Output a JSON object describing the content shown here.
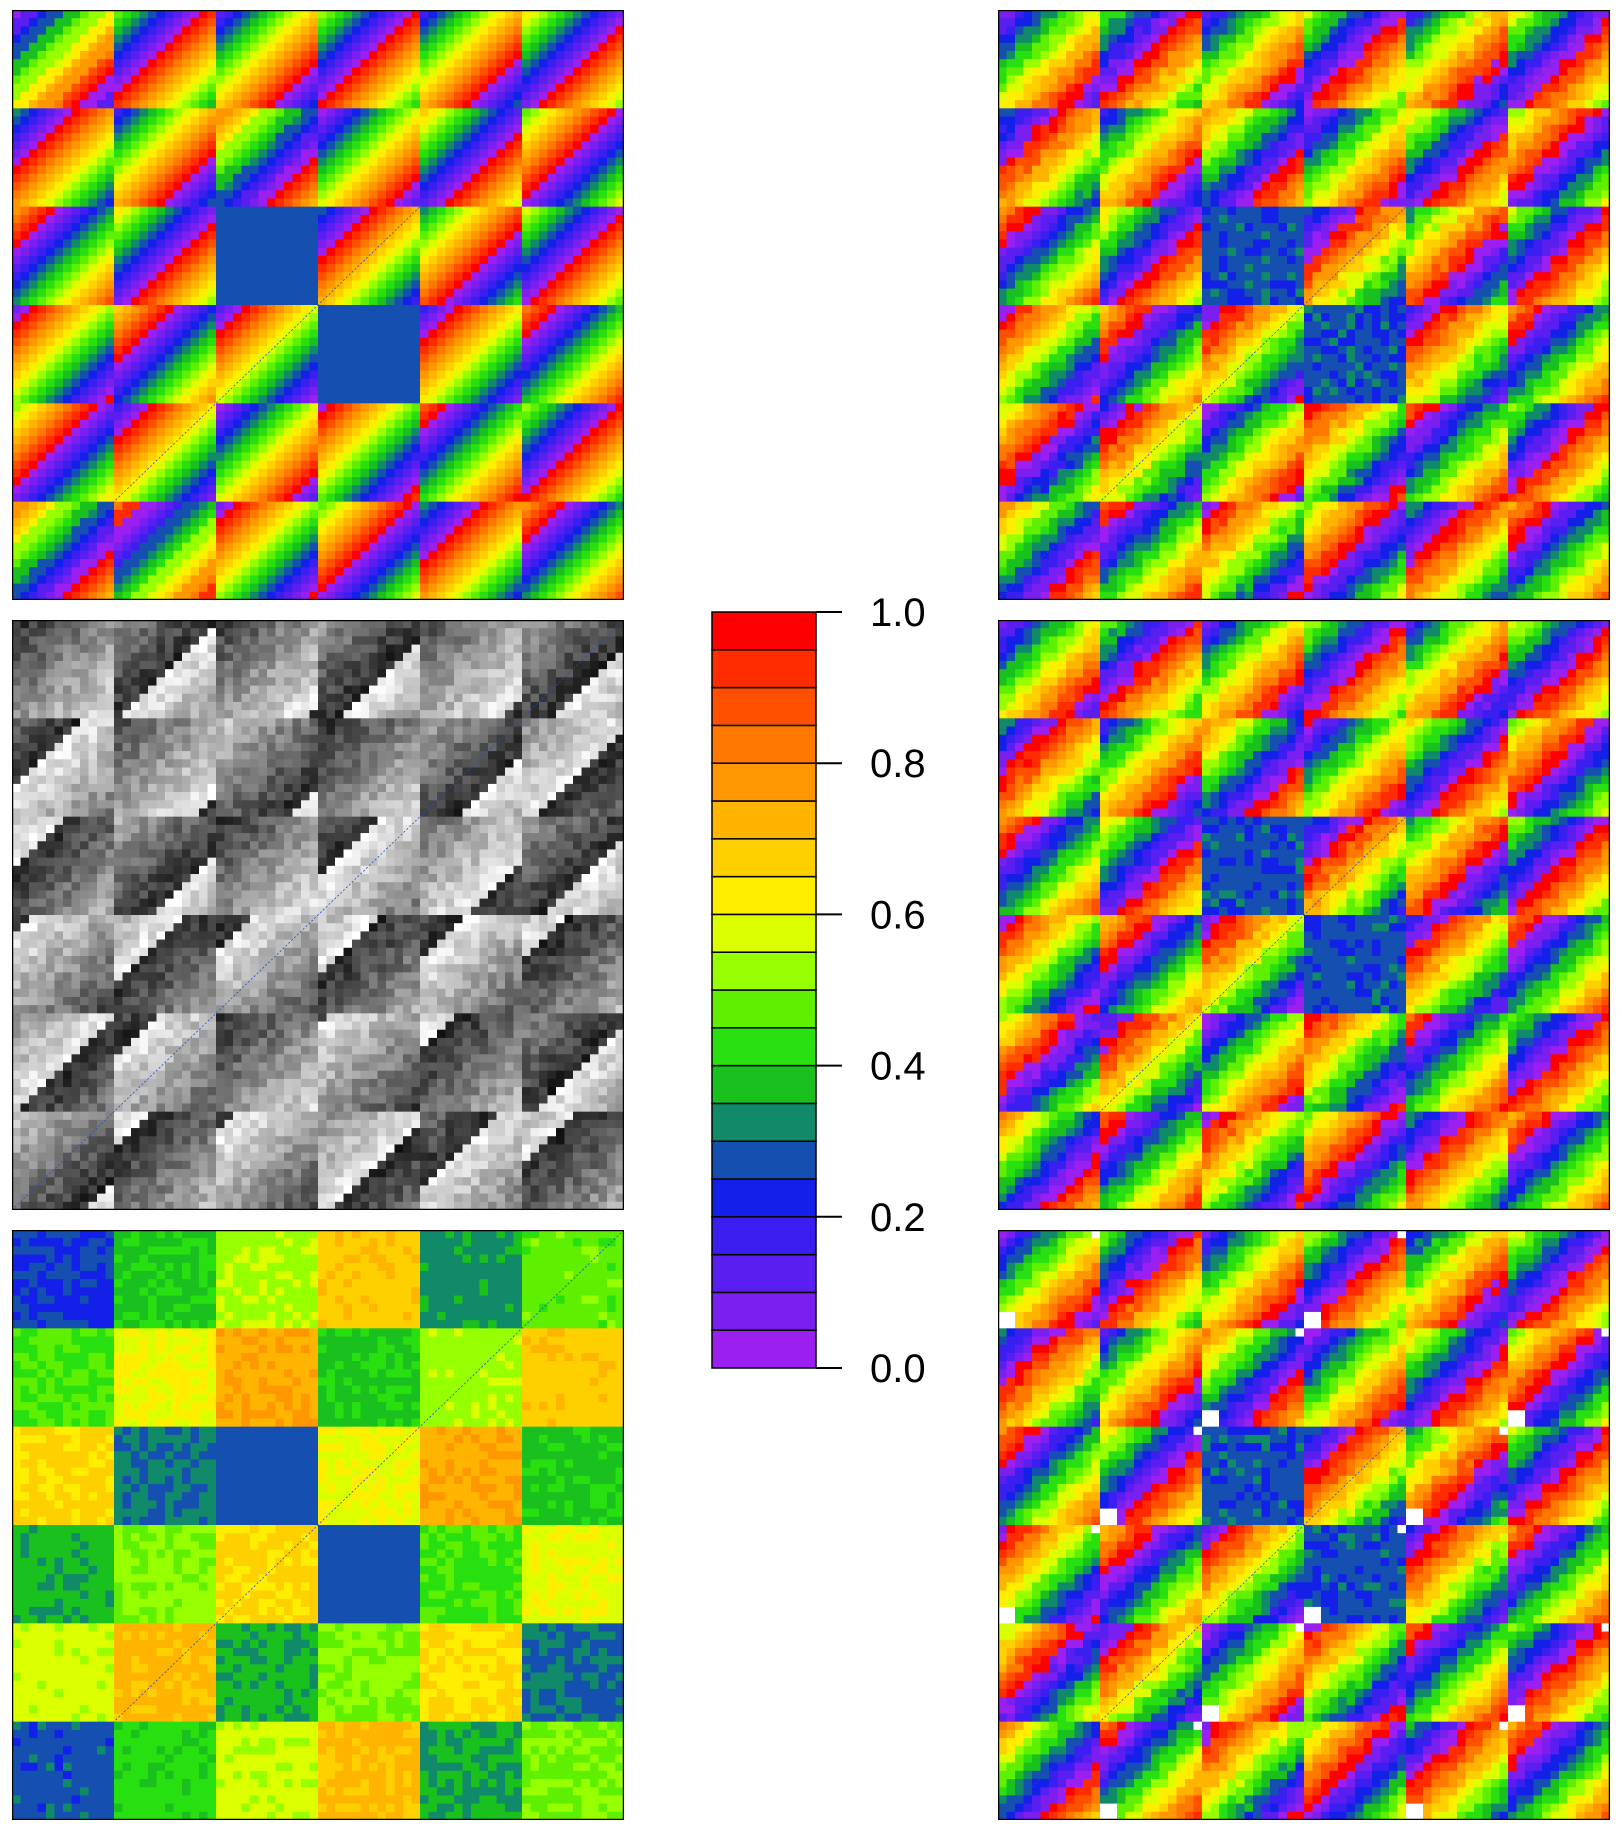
{
  "chart_data": {
    "type": "heatmap",
    "description_panels": [
      {
        "name": "panel-top-left",
        "style": "banded"
      },
      {
        "name": "panel-top-right",
        "style": "noisy"
      },
      {
        "name": "panel-mid-left",
        "style": "grayscale"
      },
      {
        "name": "panel-mid-right",
        "style": "streaky"
      },
      {
        "name": "panel-bottom-left",
        "style": "blocky"
      },
      {
        "name": "panel-bottom-right",
        "style": "streaky-white"
      }
    ],
    "colorbar": {
      "ticks": [
        "1.0",
        "0.8",
        "0.6",
        "0.4",
        "0.2",
        "0.0"
      ],
      "tick_values": [
        1.0,
        0.8,
        0.6,
        0.4,
        0.2,
        0.0
      ],
      "range": [
        0.0,
        1.0
      ],
      "colors": [
        "#9b1ff0",
        "#7b1ff0",
        "#5a1ff0",
        "#3a1ff0",
        "#1220e8",
        "#1550b0",
        "#118a6a",
        "#19c01e",
        "#28e010",
        "#5ef000",
        "#96ff00",
        "#dcff00",
        "#ffee00",
        "#ffd000",
        "#ffb400",
        "#ff9800",
        "#ff7800",
        "#ff5000",
        "#ff2c00",
        "#ff0000"
      ]
    }
  }
}
